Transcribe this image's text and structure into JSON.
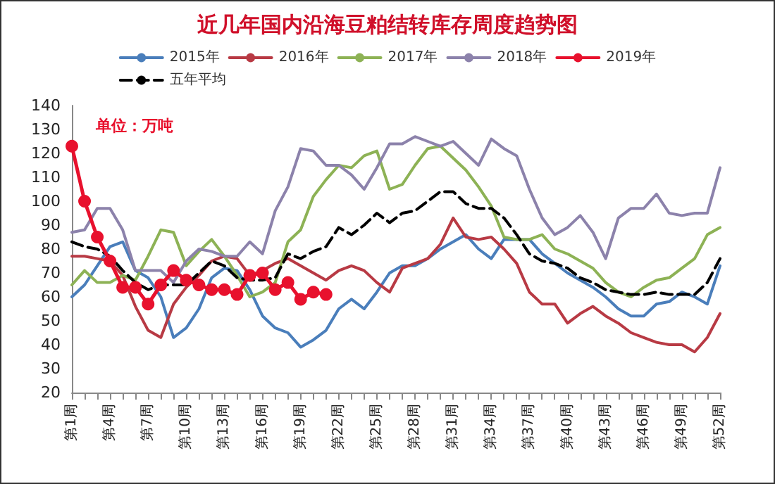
{
  "chart_data": {
    "type": "line",
    "title": "近几年国内沿海豆粕结转库存周度趋势图",
    "annotations": [
      "单位：万吨"
    ],
    "categories": [
      "第1周",
      null,
      null,
      "第4周",
      null,
      null,
      "第7周",
      null,
      null,
      "第10周",
      null,
      null,
      "第13周",
      null,
      null,
      "第16周",
      null,
      null,
      "第19周",
      null,
      null,
      "第22周",
      null,
      null,
      "第25周",
      null,
      null,
      "第28周",
      null,
      null,
      "第31周",
      null,
      null,
      "第34周",
      null,
      null,
      "第37周",
      null,
      null,
      "第40周",
      null,
      null,
      "第43周",
      null,
      null,
      "第46周",
      null,
      null,
      "第49周",
      null,
      null,
      "第52周"
    ],
    "series": [
      {
        "name": "2015年",
        "color": "#4a7ebb",
        "values": [
          60,
          65,
          73,
          81,
          83,
          71,
          68,
          60,
          43,
          47,
          55,
          68,
          72,
          71,
          63,
          52,
          47,
          45,
          39,
          42,
          46,
          55,
          59,
          55,
          62,
          70,
          73,
          73,
          76,
          80,
          83,
          86,
          80,
          76,
          84,
          84,
          84,
          78,
          74,
          70,
          67,
          64,
          60,
          55,
          52,
          52,
          57,
          58,
          62,
          60,
          57,
          73
        ]
      },
      {
        "name": "2016年",
        "color": "#b83a44",
        "values": [
          77,
          77,
          76,
          75,
          69,
          56,
          46,
          43,
          57,
          64,
          69,
          75,
          77,
          76,
          69,
          71,
          74,
          76,
          73,
          70,
          67,
          71,
          73,
          71,
          66,
          62,
          72,
          74,
          76,
          82,
          93,
          85,
          84,
          85,
          80,
          74,
          62,
          57,
          57,
          49,
          53,
          56,
          52,
          49,
          45,
          43,
          41,
          40,
          40,
          37,
          43,
          53
        ]
      },
      {
        "name": "2017年",
        "color": "#8db255",
        "values": [
          65,
          71,
          66,
          66,
          69,
          67,
          77,
          88,
          87,
          73,
          79,
          84,
          77,
          69,
          60,
          62,
          66,
          83,
          88,
          102,
          109,
          115,
          114,
          119,
          121,
          105,
          107,
          115,
          122,
          123,
          118,
          113,
          106,
          98,
          85,
          84,
          84,
          86,
          80,
          78,
          75,
          72,
          66,
          62,
          60,
          64,
          67,
          68,
          72,
          76,
          86,
          89
        ]
      },
      {
        "name": "2018年",
        "color": "#8c82ab",
        "values": [
          87,
          88,
          97,
          97,
          88,
          71,
          71,
          71,
          66,
          75,
          80,
          79,
          77,
          77,
          83,
          78,
          96,
          106,
          122,
          121,
          115,
          115,
          111,
          105,
          114,
          124,
          124,
          127,
          125,
          123,
          125,
          120,
          115,
          126,
          122,
          119,
          105,
          93,
          86,
          89,
          94,
          87,
          76,
          93,
          97,
          97,
          103,
          95,
          94,
          95,
          95,
          114
        ]
      },
      {
        "name": "2019年",
        "color": "#e8112d",
        "marker": "circle",
        "values": [
          123,
          100,
          85,
          75,
          64,
          64,
          57,
          65,
          71,
          67,
          65,
          63,
          63,
          61,
          69,
          70,
          63,
          66,
          59,
          62,
          61,
          null,
          null,
          null,
          null,
          null,
          null,
          null,
          null,
          null,
          null,
          null,
          null,
          null,
          null,
          null,
          null,
          null,
          null,
          null,
          null,
          null,
          null,
          null,
          null,
          null,
          null,
          null,
          null,
          null,
          null,
          null
        ]
      },
      {
        "name": "五年平均",
        "color": "#000000",
        "line_style": "dashed",
        "values": [
          83,
          81,
          80,
          77,
          71,
          66,
          63,
          65,
          65,
          65,
          70,
          75,
          73,
          68,
          67,
          67,
          68,
          78,
          76,
          79,
          81,
          89,
          86,
          90,
          95,
          91,
          95,
          96,
          100,
          104,
          104,
          99,
          97,
          97,
          93,
          86,
          78,
          75,
          74,
          72,
          68,
          66,
          63,
          62,
          61,
          61,
          62,
          61,
          61,
          61,
          66,
          76
        ]
      }
    ],
    "ylim": [
      20,
      140
    ],
    "yticks": [
      20,
      30,
      40,
      50,
      60,
      70,
      80,
      90,
      100,
      110,
      120,
      130,
      140
    ],
    "grid": false,
    "legend": "top",
    "marker": "none",
    "line_style": "solid"
  }
}
